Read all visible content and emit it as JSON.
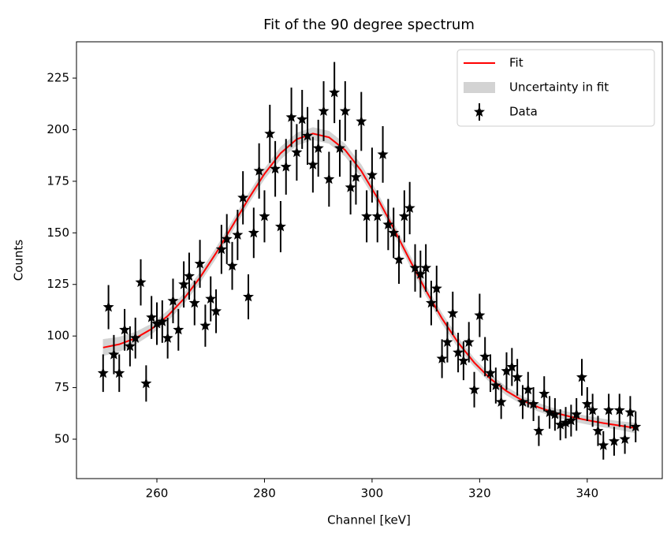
{
  "chart_data": {
    "type": "scatter",
    "title": "Fit of the 90 degree spectrum",
    "xlabel": "Channel [keV]",
    "ylabel": "Counts",
    "xlim": [
      245.05,
      353.95
    ],
    "ylim": [
      30.9,
      242.6
    ],
    "xticks": [
      260,
      280,
      300,
      320,
      340
    ],
    "yticks": [
      50,
      75,
      100,
      125,
      150,
      175,
      200,
      225
    ],
    "legend": "upper right",
    "series": [
      {
        "name": "Fit",
        "color": "#ff0000",
        "kind": "line",
        "x": [
          250,
          253,
          256,
          259,
          262,
          265,
          268,
          271,
          274,
          277,
          280,
          283,
          286,
          289,
          292,
          295,
          298,
          301,
          304,
          307,
          310,
          313,
          316,
          319,
          322,
          325,
          328,
          331,
          334,
          337,
          340,
          343,
          346,
          349
        ],
        "values": [
          94.4,
          96.0,
          98.9,
          103.4,
          109.7,
          118.0,
          128.3,
          140.2,
          153.2,
          166.4,
          178.6,
          188.6,
          195.4,
          198.1,
          196.3,
          190.1,
          180.0,
          166.9,
          152.2,
          136.9,
          122.1,
          108.5,
          96.8,
          87.1,
          79.3,
          73.3,
          68.7,
          65.4,
          62.8,
          60.8,
          59.2,
          57.8,
          56.6,
          55.4
        ]
      },
      {
        "name": "Uncertainty in fit",
        "color": "#d3d3d3",
        "kind": "band",
        "x": [
          250,
          253,
          256,
          259,
          262,
          265,
          268,
          271,
          274,
          277,
          280,
          283,
          286,
          289,
          292,
          295,
          298,
          301,
          304,
          307,
          310,
          313,
          316,
          319,
          322,
          325,
          328,
          331,
          334,
          337,
          340,
          343,
          346,
          349
        ],
        "lower": [
          90.4,
          92.5,
          95.9,
          100.9,
          107.2,
          115.5,
          125.8,
          137.7,
          150.7,
          163.9,
          176.1,
          185.6,
          192.4,
          195.1,
          193.3,
          187.1,
          177.0,
          164.4,
          149.7,
          134.4,
          119.6,
          106.0,
          94.3,
          85.1,
          77.3,
          71.3,
          66.7,
          63.4,
          60.8,
          58.8,
          57.2,
          55.8,
          54.6,
          52.9
        ],
        "upper": [
          98.4,
          99.5,
          101.9,
          105.9,
          112.2,
          120.5,
          130.8,
          142.7,
          155.7,
          168.9,
          181.1,
          191.6,
          198.4,
          201.1,
          199.3,
          193.1,
          183.0,
          169.4,
          154.7,
          139.4,
          124.6,
          111.0,
          99.3,
          89.1,
          81.3,
          75.3,
          70.7,
          67.4,
          64.8,
          62.8,
          61.2,
          59.8,
          58.6,
          57.9
        ]
      },
      {
        "name": "Data",
        "color": "#000000",
        "kind": "errorbar",
        "x": [
          250,
          251,
          252,
          253,
          254,
          255,
          256,
          257,
          258,
          259,
          260,
          261,
          262,
          263,
          264,
          265,
          266,
          267,
          268,
          269,
          270,
          271,
          272,
          273,
          274,
          275,
          276,
          277,
          278,
          279,
          280,
          281,
          282,
          283,
          284,
          285,
          286,
          287,
          288,
          289,
          290,
          291,
          292,
          293,
          294,
          295,
          296,
          297,
          298,
          299,
          300,
          301,
          302,
          303,
          304,
          305,
          306,
          307,
          308,
          309,
          310,
          311,
          312,
          313,
          314,
          315,
          316,
          317,
          318,
          319,
          320,
          321,
          322,
          323,
          324,
          325,
          326,
          327,
          328,
          329,
          330,
          331,
          332,
          333,
          334,
          335,
          336,
          337,
          338,
          339,
          340,
          341,
          342,
          343,
          344,
          345,
          346,
          347,
          348,
          349
        ],
        "values": [
          82,
          114,
          91,
          82,
          103,
          95,
          99,
          126,
          77,
          109,
          106,
          107,
          99,
          117,
          103,
          125,
          129,
          116,
          135,
          105,
          118,
          112,
          142,
          147,
          134,
          149,
          167,
          119,
          150,
          180,
          158,
          198,
          181,
          153,
          182,
          206,
          189,
          205,
          197,
          183,
          191,
          209,
          176,
          218,
          191,
          209,
          172,
          177,
          204,
          158,
          178,
          158,
          188,
          154,
          150,
          137,
          158,
          162,
          133,
          130,
          133,
          116,
          123,
          89,
          97,
          111,
          92,
          88,
          97,
          74,
          110,
          90,
          82,
          76,
          68,
          83,
          85,
          80,
          68,
          74,
          67,
          54,
          72,
          63,
          62,
          57,
          58,
          59,
          62,
          80,
          67,
          64,
          54,
          47,
          64,
          49,
          64,
          50,
          63,
          56
        ],
        "errors": [
          9.1,
          10.7,
          9.5,
          9.1,
          10.1,
          9.7,
          9.9,
          11.2,
          8.8,
          10.4,
          10.3,
          10.3,
          9.9,
          10.8,
          10.1,
          11.2,
          11.4,
          10.8,
          11.6,
          10.2,
          10.9,
          10.6,
          11.9,
          12.1,
          11.6,
          12.2,
          12.9,
          10.9,
          12.2,
          13.4,
          12.6,
          14.1,
          13.5,
          12.4,
          13.5,
          14.4,
          13.7,
          14.3,
          14.0,
          13.5,
          13.8,
          14.5,
          13.3,
          14.8,
          13.8,
          14.5,
          13.1,
          13.3,
          14.3,
          12.6,
          13.3,
          12.6,
          13.7,
          12.4,
          12.2,
          11.7,
          12.6,
          12.7,
          11.5,
          11.4,
          11.5,
          10.8,
          11.1,
          9.4,
          9.8,
          10.5,
          9.6,
          9.4,
          9.8,
          8.6,
          10.5,
          9.5,
          9.1,
          8.7,
          8.2,
          9.1,
          9.2,
          8.9,
          8.2,
          8.6,
          8.2,
          7.3,
          8.5,
          7.9,
          7.9,
          7.5,
          7.6,
          7.7,
          7.9,
          8.9,
          8.2,
          8.0,
          7.3,
          6.9,
          8.0,
          7.0,
          8.0,
          7.1,
          7.9,
          7.5
        ]
      }
    ]
  }
}
